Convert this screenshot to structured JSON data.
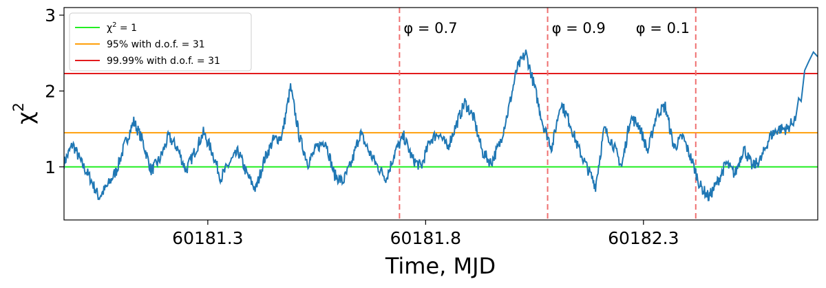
{
  "chart_data": {
    "type": "line",
    "title": "",
    "xlabel": "Time, MJD",
    "ylabel": "χ",
    "ylabel_superscript": "2",
    "xlim": [
      60180.97,
      60182.7
    ],
    "ylim": [
      0.3,
      3.1
    ],
    "xticks": [
      60181.3,
      60181.8,
      60182.3
    ],
    "xtick_labels": [
      "60181.3",
      "60181.8",
      "60182.3"
    ],
    "yticks": [
      1,
      2,
      3
    ],
    "ytick_labels": [
      "1",
      "2",
      "3"
    ],
    "grid": false,
    "legend_position": "upper-left",
    "series": [
      {
        "color": "#1f77b4",
        "x": [
          60180.97,
          60180.99,
          60181.01,
          60181.03,
          60181.05,
          60181.07,
          60181.09,
          60181.11,
          60181.13,
          60181.15,
          60181.17,
          60181.19,
          60181.21,
          60181.23,
          60181.25,
          60181.27,
          60181.29,
          60181.31,
          60181.33,
          60181.35,
          60181.37,
          60181.39,
          60181.41,
          60181.43,
          60181.45,
          60181.47,
          60181.49,
          60181.51,
          60181.53,
          60181.55,
          60181.57,
          60181.59,
          60181.61,
          60181.63,
          60181.65,
          60181.67,
          60181.69,
          60181.71,
          60181.73,
          60181.75,
          60181.77,
          60181.79,
          60181.81,
          60181.83,
          60181.85,
          60181.87,
          60181.89,
          60181.91,
          60181.93,
          60181.95,
          60181.97,
          60181.99,
          60182.01,
          60182.03,
          60182.05,
          60182.07,
          60182.09,
          60182.11,
          60182.13,
          60182.15,
          60182.17,
          60182.19,
          60182.21,
          60182.23,
          60182.25,
          60182.27,
          60182.29,
          60182.31,
          60182.33,
          60182.35,
          60182.37,
          60182.39,
          60182.41,
          60182.43,
          60182.45,
          60182.47,
          60182.49,
          60182.51,
          60182.53,
          60182.55,
          60182.57,
          60182.59,
          60182.61,
          60182.63,
          60182.65
        ],
        "values": [
          1.05,
          1.3,
          1.05,
          0.85,
          0.6,
          0.75,
          0.95,
          1.3,
          1.6,
          1.35,
          0.95,
          1.1,
          1.4,
          1.25,
          0.95,
          1.2,
          1.45,
          1.2,
          0.85,
          1.05,
          1.2,
          0.9,
          0.7,
          1.1,
          1.35,
          1.4,
          2.05,
          1.4,
          1.05,
          1.25,
          1.35,
          0.9,
          0.8,
          1.05,
          1.45,
          1.2,
          1.0,
          0.85,
          1.2,
          1.4,
          1.1,
          1.0,
          1.35,
          1.45,
          1.25,
          1.55,
          1.85,
          1.65,
          1.2,
          1.05,
          1.3,
          1.75,
          2.3,
          2.5,
          2.05,
          1.55,
          1.25,
          1.85,
          1.6,
          1.25,
          1.0,
          0.75,
          1.5,
          1.3,
          1.0,
          1.65,
          1.55,
          1.2,
          1.7,
          1.8,
          1.25,
          1.4,
          1.1,
          0.75,
          0.6,
          0.8,
          1.05,
          0.9,
          1.25,
          1.0,
          1.1,
          1.4,
          1.5,
          1.5,
          1.65
        ]
      }
    ],
    "horizontal_lines": [
      {
        "y": 1.0,
        "color": "#22ee22",
        "label_base": "χ",
        "label_sup": "2",
        "label_rest": " = 1"
      },
      {
        "y": 1.45,
        "color": "#ff9f0a",
        "label": "95% with d.o.f. = 31"
      },
      {
        "y": 2.23,
        "color": "#e31a1c",
        "label": "99.99% with d.o.f. = 31"
      }
    ],
    "vertical_lines": [
      {
        "x": 60181.74,
        "color": "#ef6f6f",
        "label": "φ = 0.7"
      },
      {
        "x": 60182.08,
        "color": "#ef6f6f",
        "label": "φ = 0.9"
      },
      {
        "x": 60182.42,
        "color": "#ef6f6f",
        "label": "φ = 0.1"
      }
    ]
  }
}
